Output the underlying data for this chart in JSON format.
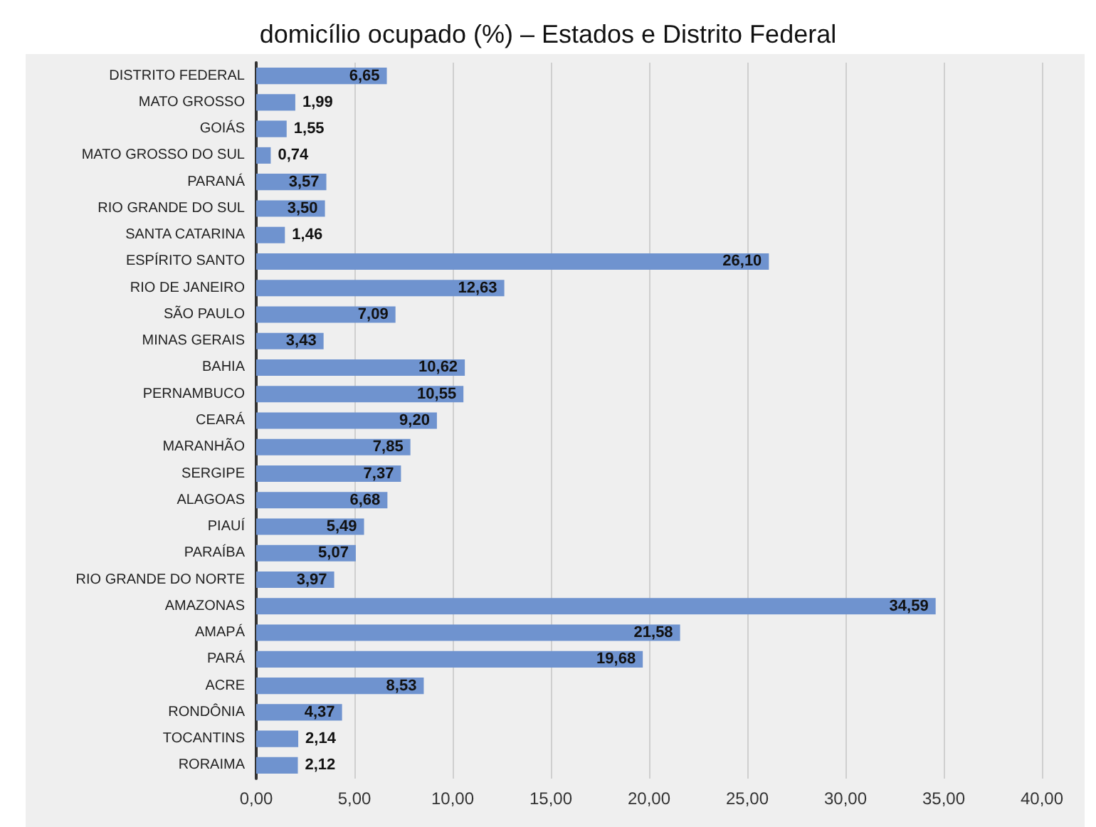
{
  "chart_data": {
    "type": "bar",
    "orientation": "horizontal",
    "title": "domicílio ocupado (%) – Estados e Distrito Federal",
    "categories": [
      "DISTRITO FEDERAL",
      "MATO GROSSO",
      "GOIÁS",
      "MATO GROSSO DO SUL",
      "PARANÁ",
      "RIO GRANDE DO SUL",
      "SANTA CATARINA",
      "ESPÍRITO SANTO",
      "RIO DE JANEIRO",
      "SÃO PAULO",
      "MINAS GERAIS",
      "BAHIA",
      "PERNAMBUCO",
      "CEARÁ",
      "MARANHÃO",
      "SERGIPE",
      "ALAGOAS",
      "PIAUÍ",
      "PARAÍBA",
      "RIO GRANDE DO NORTE",
      "AMAZONAS",
      "AMAPÁ",
      "PARÁ",
      "ACRE",
      "RONDÔNIA",
      "TOCANTINS",
      "RORAIMA"
    ],
    "values": [
      6.65,
      1.99,
      1.55,
      0.74,
      3.57,
      3.5,
      1.46,
      26.1,
      12.63,
      7.09,
      3.43,
      10.62,
      10.55,
      9.2,
      7.85,
      7.37,
      6.68,
      5.49,
      5.07,
      3.97,
      34.59,
      21.58,
      19.68,
      8.53,
      4.37,
      2.14,
      2.12
    ],
    "value_labels": [
      "6,65",
      "1,99",
      "1,55",
      "0,74",
      "3,57",
      "3,50",
      "1,46",
      "26,10",
      "12,63",
      "7,09",
      "3,43",
      "10,62",
      "10,55",
      "9,20",
      "7,85",
      "7,37",
      "6,68",
      "5,49",
      "5,07",
      "3,97",
      "34,59",
      "21,58",
      "19,68",
      "8,53",
      "4,37",
      "2,14",
      "2,12"
    ],
    "color": "#6f93cf",
    "xlim": [
      0,
      40
    ],
    "xticks": [
      {
        "value": 0,
        "label": "0,00"
      },
      {
        "value": 5,
        "label": "5,00"
      },
      {
        "value": 10,
        "label": "10,00"
      },
      {
        "value": 15,
        "label": "15,00"
      },
      {
        "value": 20,
        "label": "20,00"
      },
      {
        "value": 25,
        "label": "25,00"
      },
      {
        "value": 30,
        "label": "30,00"
      },
      {
        "value": 35,
        "label": "35,00"
      },
      {
        "value": 40,
        "label": "40,00"
      }
    ],
    "grid": "x"
  }
}
